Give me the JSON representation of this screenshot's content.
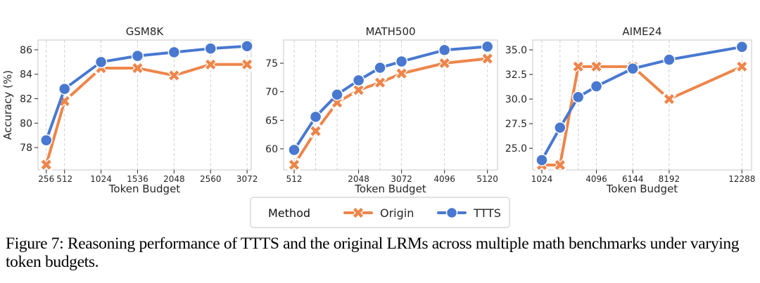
{
  "chart_data": [
    {
      "type": "line",
      "title": "GSM8K",
      "xlabel": "Token Budget",
      "ylabel": "Accuracy (%)",
      "x": [
        256,
        512,
        1024,
        1536,
        2048,
        2560,
        3072
      ],
      "xticks": [
        256,
        512,
        1024,
        1536,
        2048,
        2560,
        3072
      ],
      "xtick_labels": [
        "256",
        "512",
        "1024",
        "1536",
        "2048",
        "2560",
        "3072"
      ],
      "yticks": [
        78,
        80,
        82,
        84,
        86
      ],
      "ytick_labels": [
        "78",
        "80",
        "82",
        "84",
        "86"
      ],
      "xlim": [
        140,
        3130
      ],
      "ylim": [
        76.17,
        86.8
      ],
      "grid": "vertical dashed at each x",
      "series": [
        {
          "name": "Origin",
          "values": [
            76.6,
            81.8,
            84.5,
            84.5,
            83.9,
            84.8,
            84.8
          ]
        },
        {
          "name": "TTTS",
          "values": [
            78.6,
            82.8,
            85.0,
            85.5,
            85.8,
            86.1,
            86.3
          ]
        }
      ]
    },
    {
      "type": "line",
      "title": "MATH500",
      "xlabel": "Token Budget",
      "ylabel": "",
      "x": [
        512,
        1024,
        1536,
        2048,
        2560,
        3072,
        4096,
        5120
      ],
      "xticks": [
        512,
        2048,
        3072,
        4096,
        5120
      ],
      "xtick_labels": [
        "512",
        "2048",
        "3072",
        "4096",
        "5120"
      ],
      "yticks": [
        60,
        65,
        70,
        75
      ],
      "ytick_labels": [
        "60",
        "65",
        "70",
        "75"
      ],
      "xlim": [
        260,
        5360
      ],
      "ylim": [
        56.3,
        79.06
      ],
      "grid": "vertical dashed at each x",
      "series": [
        {
          "name": "Origin",
          "values": [
            57.2,
            63.1,
            68.1,
            70.3,
            71.6,
            73.2,
            75.0,
            75.8
          ]
        },
        {
          "name": "TTTS",
          "values": [
            59.8,
            65.6,
            69.5,
            72.0,
            74.2,
            75.3,
            77.3,
            77.9
          ]
        }
      ]
    },
    {
      "type": "line",
      "title": "AIME24",
      "xlabel": "Token Budget",
      "ylabel": "",
      "x": [
        1024,
        2048,
        3072,
        4096,
        6144,
        8192,
        12288
      ],
      "xticks": [
        1024,
        4096,
        6144,
        8192,
        12288
      ],
      "xtick_labels": [
        "1024",
        "4096",
        "6144",
        "8192",
        "12288"
      ],
      "yticks": [
        25.0,
        27.5,
        30.0,
        32.5,
        35.0
      ],
      "ytick_labels": [
        "25.0",
        "27.5",
        "30.0",
        "32.5",
        "35.0"
      ],
      "xlim": [
        510,
        12830
      ],
      "ylim": [
        22.8,
        36.0
      ],
      "grid": "vertical dashed at each x",
      "series": [
        {
          "name": "Origin",
          "values": [
            23.3,
            23.3,
            33.3,
            33.3,
            33.3,
            30.0,
            33.3
          ]
        },
        {
          "name": "TTTS",
          "values": [
            23.8,
            27.1,
            30.2,
            31.3,
            33.1,
            34.0,
            35.3
          ]
        }
      ]
    }
  ],
  "legend": {
    "title": "Method",
    "placement": "bottom-center",
    "entries": [
      {
        "label": "Origin",
        "marker": "x",
        "color": "#EE854A"
      },
      {
        "label": "TTTS",
        "marker": "circle",
        "color": "#4878D0"
      }
    ]
  },
  "caption": "Figure 7: Reasoning performance of TTTS and the original LRMs across multiple math benchmarks under varying token budgets."
}
